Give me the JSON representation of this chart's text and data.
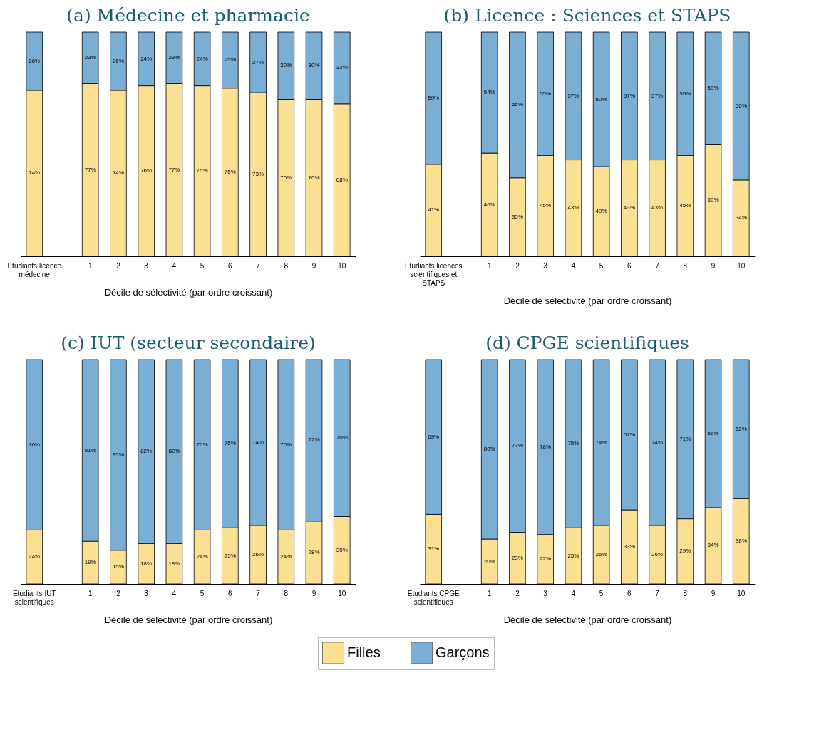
{
  "chart_data": [
    {
      "type": "bar",
      "title": "(a) Médecine et pharmacie",
      "xlabel": "Décile de sélectivité (par ordre croissant)",
      "stacked": true,
      "categories": [
        "Etudiants licence médecine",
        null,
        "1",
        "2",
        "3",
        "4",
        "5",
        "6",
        "7",
        "8",
        "9",
        "10"
      ],
      "series": [
        {
          "color": "#fbe094",
          "values": [
            74,
            null,
            77,
            74,
            76,
            77,
            76,
            75,
            73,
            70,
            70,
            68
          ],
          "value_labels": [
            "74%",
            null,
            "77%",
            "74%",
            "76%",
            "77%",
            "76%",
            "75%",
            "73%",
            "70%",
            "70%",
            "68%"
          ]
        },
        {
          "color": "#7aaed4",
          "values": [
            26,
            null,
            23,
            26,
            24,
            23,
            24,
            25,
            27,
            30,
            30,
            32
          ],
          "value_labels": [
            "26%",
            null,
            "23%",
            "26%",
            "24%",
            "23%",
            "24%",
            "25%",
            "27%",
            "30%",
            "30%",
            "32%"
          ]
        }
      ]
    },
    {
      "type": "bar",
      "title": "(b) Licence : Sciences et STAPS",
      "xlabel": "Décile de sélectivité (par ordre croissant)",
      "stacked": true,
      "categories": [
        "Etudiants licences scientifiques et STAPS",
        null,
        "1",
        "2",
        "3",
        "4",
        "5",
        "6",
        "7",
        "8",
        "9",
        "10"
      ],
      "series": [
        {
          "color": "#fbe094",
          "values": [
            41,
            null,
            46,
            35,
            45,
            43,
            40,
            43,
            43,
            45,
            50,
            34
          ],
          "value_labels": [
            "41%",
            null,
            "46%",
            "35%",
            "45%",
            "43%",
            "40%",
            "43%",
            "43%",
            "45%",
            "50%",
            "34%"
          ]
        },
        {
          "color": "#7aaed4",
          "values": [
            59,
            null,
            54,
            65,
            55,
            57,
            60,
            57,
            57,
            55,
            50,
            66
          ],
          "value_labels": [
            "59%",
            null,
            "54%",
            "65%",
            "55%",
            "57%",
            "60%",
            "57%",
            "57%",
            "55%",
            "50%",
            "66%"
          ]
        }
      ]
    },
    {
      "type": "bar",
      "title": "(c) IUT (secteur secondaire)",
      "xlabel": "Décile de sélectivité (par ordre croissant)",
      "stacked": true,
      "categories": [
        "Etudiants IUT scientifiques",
        null,
        "1",
        "2",
        "3",
        "4",
        "5",
        "6",
        "7",
        "8",
        "9",
        "10"
      ],
      "series": [
        {
          "color": "#fbe094",
          "values": [
            24,
            null,
            19,
            15,
            18,
            18,
            24,
            25,
            26,
            24,
            28,
            30
          ],
          "value_labels": [
            "24%",
            null,
            "19%",
            "15%",
            "18%",
            "18%",
            "24%",
            "25%",
            "26%",
            "24%",
            "28%",
            "30%"
          ]
        },
        {
          "color": "#7aaed4",
          "values": [
            76,
            null,
            81,
            85,
            82,
            82,
            76,
            75,
            74,
            76,
            72,
            70
          ],
          "value_labels": [
            "76%",
            null,
            "81%",
            "85%",
            "82%",
            "82%",
            "76%",
            "75%",
            "74%",
            "76%",
            "72%",
            "70%"
          ]
        }
      ]
    },
    {
      "type": "bar",
      "title": "(d) CPGE scientifiques",
      "xlabel": "Décile de sélectivité (par ordre croissant)",
      "stacked": true,
      "legend": "bottom",
      "categories": [
        "Etudiants CPGE scientifiques",
        null,
        "1",
        "2",
        "3",
        "4",
        "5",
        "6",
        "7",
        "8",
        "9",
        "10"
      ],
      "series": [
        {
          "name": "Filles",
          "color": "#fbe094",
          "values": [
            31,
            null,
            20,
            23,
            22,
            25,
            26,
            33,
            26,
            29,
            34,
            38
          ],
          "value_labels": [
            "31%",
            null,
            "20%",
            "23%",
            "22%",
            "25%",
            "26%",
            "33%",
            "26%",
            "29%",
            "34%",
            "38%"
          ]
        },
        {
          "name": "Garçons",
          "color": "#7aaed4",
          "values": [
            69,
            null,
            80,
            77,
            78,
            75,
            74,
            67,
            74,
            71,
            66,
            62
          ],
          "value_labels": [
            "69%",
            null,
            "80%",
            "77%",
            "78%",
            "75%",
            "74%",
            "67%",
            "74%",
            "71%",
            "66%",
            "62%"
          ]
        }
      ]
    }
  ]
}
